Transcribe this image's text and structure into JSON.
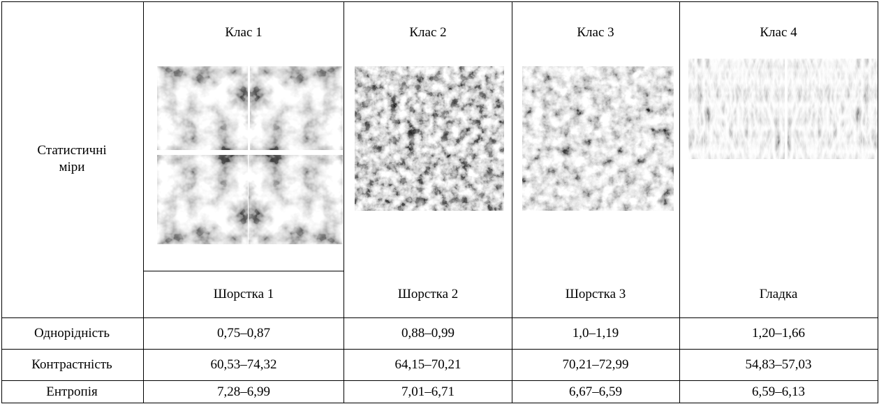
{
  "header": {
    "corner": "Статистичні\nміри",
    "classes": [
      "Клас 1",
      "Клас 2",
      "Клас 3",
      "Клас 4"
    ],
    "surfaces": [
      "Шорстка 1",
      "Шорстка 2",
      "Шорстка 3",
      "Гладка"
    ]
  },
  "table": {
    "rows": [
      [
        "Однорідність",
        "0,75–0,87",
        "0,88–0,99",
        "1,0–1,19",
        "1,20–1,66"
      ],
      [
        "Контрастність",
        "60,53–74,32",
        "64,15–70,21",
        "70,21–72,99",
        "54,83–57,03"
      ],
      [
        "Ентропія",
        "7,28–6,99",
        "7,01–6,71",
        "6,67–6,59",
        "6,59–6,13"
      ]
    ]
  }
}
